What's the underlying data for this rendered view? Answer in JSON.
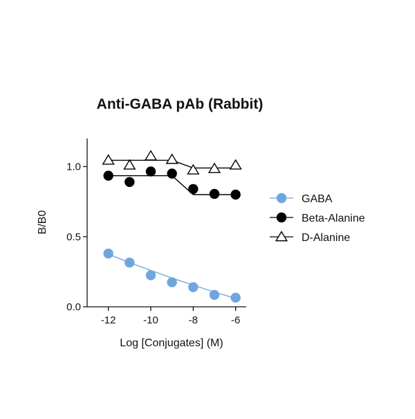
{
  "chart_data": {
    "type": "scatter",
    "title": "Anti-GABA pAb (Rabbit)",
    "xlabel": "Log [Conjugates] (M)",
    "ylabel": "B/B0",
    "xlim": [
      -13,
      -5.5
    ],
    "ylim": [
      0,
      1.2
    ],
    "xticks": [
      -12,
      -10,
      -8,
      -6
    ],
    "xtick_labels": [
      "-12",
      "-10",
      "-8",
      "-6"
    ],
    "yticks": [
      0,
      0.5,
      1.0
    ],
    "ytick_labels": [
      "0.0",
      "0.5",
      "1.0"
    ],
    "grid": false,
    "legend_position": "right",
    "series": [
      {
        "name": "GABA",
        "marker": "filled-circle",
        "color": "#6fa6de",
        "line_color": "#6fa6de",
        "x": [
          -12,
          -11,
          -10,
          -9,
          -8,
          -7,
          -6
        ],
        "y": [
          0.38,
          0.315,
          0.225,
          0.175,
          0.14,
          0.085,
          0.065
        ],
        "fit_y": [
          0.375,
          0.315,
          0.26,
          0.205,
          0.155,
          0.105,
          0.06
        ]
      },
      {
        "name": "Beta-Alanine",
        "marker": "filled-circle",
        "color": "#000000",
        "line_color": "#000000",
        "x": [
          -12,
          -11,
          -10,
          -9,
          -8,
          -7,
          -6
        ],
        "y": [
          0.935,
          0.89,
          0.965,
          0.95,
          0.84,
          0.805,
          0.8
        ],
        "fit_y": [
          0.935,
          0.935,
          0.935,
          0.935,
          0.8,
          0.8,
          0.8
        ]
      },
      {
        "name": "D-Alanine",
        "marker": "open-triangle",
        "color": "#000000",
        "line_color": "#000000",
        "x": [
          -12,
          -11,
          -10,
          -9,
          -8,
          -7,
          -6
        ],
        "y": [
          1.045,
          1.01,
          1.075,
          1.05,
          0.975,
          0.985,
          1.01
        ],
        "fit_y": [
          1.045,
          1.045,
          1.045,
          1.045,
          0.99,
          0.99,
          0.99
        ]
      }
    ]
  }
}
